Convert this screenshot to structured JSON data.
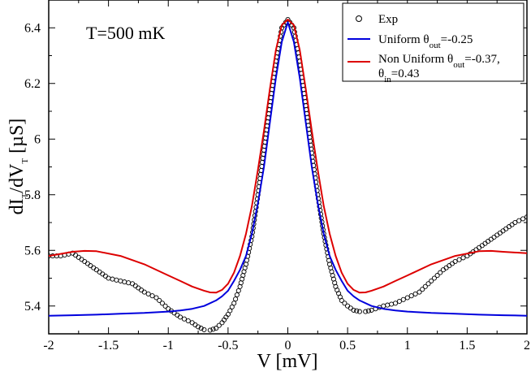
{
  "chart_data": {
    "type": "line",
    "title": "",
    "annotation": "T=500 mK",
    "xlabel": "V [mV]",
    "ylabel": {
      "p1": "dI",
      "s1": "T",
      "p2": "/dV",
      "s2": "T",
      "p3": " [µS]"
    },
    "xlim": [
      -2,
      2
    ],
    "ylim": [
      5.3,
      6.5
    ],
    "xticks": [
      -2,
      -1.5,
      -1,
      -0.5,
      0,
      0.5,
      1,
      1.5,
      2
    ],
    "xtick_labels": [
      "-2",
      "-1.5",
      "-1",
      "-0.5",
      "0",
      "0.5",
      "1",
      "1.5",
      "2"
    ],
    "yticks": [
      5.4,
      5.6,
      5.8,
      6.0,
      6.2,
      6.4
    ],
    "ytick_labels": [
      "5.4",
      "5.6",
      "5.8",
      "6",
      "6.2",
      "6.4"
    ],
    "legend_position": "top-right",
    "series": [
      {
        "name": "Exp",
        "style": "open-circles",
        "color": "#000000",
        "x": [
          -2.0,
          -1.9,
          -1.8,
          -1.7,
          -1.6,
          -1.5,
          -1.4,
          -1.3,
          -1.2,
          -1.1,
          -1.0,
          -0.9,
          -0.8,
          -0.75,
          -0.7,
          -0.65,
          -0.6,
          -0.55,
          -0.5,
          -0.45,
          -0.4,
          -0.35,
          -0.3,
          -0.25,
          -0.2,
          -0.15,
          -0.1,
          -0.05,
          0.0,
          0.05,
          0.1,
          0.15,
          0.2,
          0.25,
          0.3,
          0.35,
          0.4,
          0.45,
          0.5,
          0.55,
          0.6,
          0.65,
          0.7,
          0.8,
          0.9,
          1.0,
          1.1,
          1.2,
          1.3,
          1.4,
          1.5,
          1.6,
          1.7,
          1.8,
          1.9,
          2.0
        ],
        "y": [
          5.58,
          5.58,
          5.59,
          5.56,
          5.53,
          5.5,
          5.49,
          5.48,
          5.45,
          5.43,
          5.39,
          5.36,
          5.34,
          5.325,
          5.315,
          5.313,
          5.32,
          5.34,
          5.37,
          5.41,
          5.47,
          5.55,
          5.65,
          5.8,
          5.96,
          6.12,
          6.28,
          6.4,
          6.43,
          6.4,
          6.28,
          6.12,
          5.95,
          5.8,
          5.66,
          5.55,
          5.47,
          5.42,
          5.4,
          5.385,
          5.38,
          5.38,
          5.385,
          5.4,
          5.41,
          5.43,
          5.45,
          5.49,
          5.53,
          5.56,
          5.58,
          5.61,
          5.64,
          5.67,
          5.7,
          5.72
        ]
      },
      {
        "name": "Uniform θout=-0.25",
        "style": "line",
        "color": "#0000dd",
        "x": [
          -2.0,
          -1.8,
          -1.6,
          -1.4,
          -1.2,
          -1.0,
          -0.9,
          -0.8,
          -0.7,
          -0.6,
          -0.55,
          -0.5,
          -0.45,
          -0.4,
          -0.35,
          -0.3,
          -0.25,
          -0.2,
          -0.15,
          -0.1,
          -0.05,
          0.0,
          0.05,
          0.1,
          0.15,
          0.2,
          0.25,
          0.3,
          0.35,
          0.4,
          0.45,
          0.5,
          0.55,
          0.6,
          0.7,
          0.8,
          0.9,
          1.0,
          1.2,
          1.4,
          1.6,
          1.8,
          2.0
        ],
        "y": [
          5.365,
          5.367,
          5.369,
          5.372,
          5.375,
          5.38,
          5.384,
          5.39,
          5.4,
          5.42,
          5.435,
          5.455,
          5.49,
          5.53,
          5.58,
          5.66,
          5.77,
          5.9,
          6.06,
          6.22,
          6.35,
          6.42,
          6.35,
          6.22,
          6.06,
          5.9,
          5.77,
          5.66,
          5.58,
          5.53,
          5.49,
          5.455,
          5.435,
          5.42,
          5.4,
          5.39,
          5.384,
          5.38,
          5.375,
          5.372,
          5.369,
          5.367,
          5.365
        ]
      },
      {
        "name": "Non Uniform θout=-0.37, θin=0.43",
        "style": "line",
        "color": "#dd0000",
        "x": [
          -2.0,
          -1.8,
          -1.7,
          -1.6,
          -1.4,
          -1.2,
          -1.0,
          -0.9,
          -0.8,
          -0.7,
          -0.65,
          -0.6,
          -0.55,
          -0.5,
          -0.45,
          -0.4,
          -0.35,
          -0.3,
          -0.25,
          -0.2,
          -0.15,
          -0.1,
          -0.05,
          0.0,
          0.05,
          0.1,
          0.15,
          0.2,
          0.25,
          0.3,
          0.35,
          0.4,
          0.45,
          0.5,
          0.55,
          0.6,
          0.65,
          0.7,
          0.8,
          0.9,
          1.0,
          1.2,
          1.4,
          1.6,
          1.7,
          1.8,
          2.0
        ],
        "y": [
          5.58,
          5.595,
          5.598,
          5.597,
          5.58,
          5.55,
          5.51,
          5.49,
          5.47,
          5.455,
          5.449,
          5.448,
          5.458,
          5.48,
          5.52,
          5.58,
          5.66,
          5.76,
          5.89,
          6.03,
          6.18,
          6.32,
          6.41,
          6.43,
          6.41,
          6.32,
          6.18,
          6.03,
          5.89,
          5.76,
          5.66,
          5.58,
          5.52,
          5.48,
          5.458,
          5.448,
          5.449,
          5.455,
          5.47,
          5.49,
          5.51,
          5.55,
          5.58,
          5.597,
          5.598,
          5.595,
          5.59
        ]
      }
    ],
    "legend_entries": [
      {
        "label": "Exp"
      },
      {
        "prefix": "Uniform θ",
        "sub": "out",
        "suffix": "=-0.25"
      },
      {
        "prefix": "Non Uniform θ",
        "sub": "out",
        "suffix": "=-0.37,",
        "line2_prefix": "θ",
        "line2_sub": "in",
        "line2_suffix": "=0.43"
      }
    ]
  }
}
